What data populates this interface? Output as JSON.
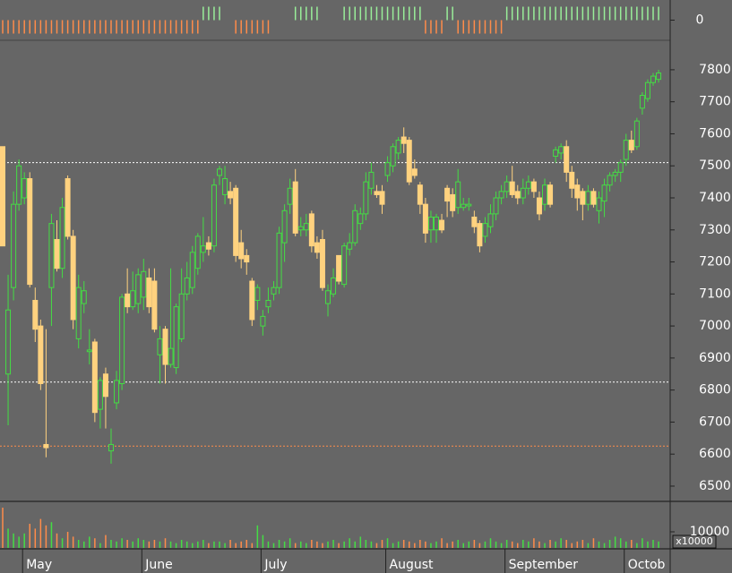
{
  "chart_data": {
    "type": "candlestick",
    "categories": [
      null,
      null,
      null,
      null,
      "May",
      null,
      null,
      null,
      null,
      null,
      null,
      null,
      null,
      null,
      null,
      null,
      null,
      null,
      null,
      null,
      null,
      null,
      null,
      null,
      null,
      null,
      "June",
      null,
      null,
      null,
      null,
      null,
      null,
      null,
      null,
      null,
      null,
      null,
      null,
      null,
      null,
      null,
      null,
      null,
      null,
      null,
      null,
      null,
      "July",
      null,
      null,
      null,
      null,
      null,
      null,
      null,
      null,
      null,
      null,
      null,
      null,
      null,
      null,
      null,
      null,
      null,
      null,
      null,
      null,
      null,
      null,
      "August",
      null,
      null,
      null,
      null,
      null,
      null,
      null,
      null,
      null,
      null,
      null,
      null,
      null,
      null,
      null,
      null,
      null,
      null,
      null,
      null,
      null,
      "September",
      null,
      null,
      null,
      null,
      null,
      null,
      null,
      null,
      null,
      null,
      null,
      null,
      null,
      null,
      null,
      null,
      null,
      null,
      null,
      null,
      null,
      "Octob",
      null,
      null,
      null,
      null,
      null,
      null
    ],
    "open": [
      7560,
      6850,
      7120,
      7380,
      7400,
      7460,
      7080,
      7000,
      6630,
      7120,
      7270,
      7180,
      7460,
      7280,
      6960,
      7070,
      6920,
      6950,
      6740,
      6850,
      6610,
      6760,
      6820,
      7100,
      7060,
      7070,
      7090,
      7150,
      7140,
      6910,
      6990,
      6880,
      6870,
      6960,
      7100,
      7120,
      7180,
      7230,
      7260,
      7250,
      7470,
      7410,
      7420,
      7430,
      7260,
      7220,
      7140,
      7080,
      7000,
      7060,
      7100,
      7120,
      7260,
      7380,
      7450,
      7300,
      7300,
      7350,
      7260,
      7270,
      7070,
      7100,
      7220,
      7130,
      7240,
      7260,
      7320,
      7350,
      7430,
      7420,
      7420,
      7470,
      7500,
      7540,
      7590,
      7580,
      7490,
      7440,
      7380,
      7300,
      7300,
      7330,
      7430,
      7410,
      7370,
      7370,
      7375,
      7340,
      7320,
      7280,
      7310,
      7350,
      7400,
      7420,
      7450,
      7420,
      7400,
      7430,
      7450,
      7400,
      7380,
      7440,
      7530,
      7540,
      7560,
      7480,
      7440,
      7420,
      7380,
      7420,
      7360,
      7390,
      7440,
      7470,
      7480,
      7520,
      7580,
      7560,
      7680,
      7710,
      7760,
      7770
    ],
    "high": [
      7560,
      7160,
      7420,
      7520,
      7480,
      7480,
      7120,
      7020,
      6990,
      7350,
      7330,
      7400,
      7470,
      7300,
      7160,
      7140,
      6990,
      6960,
      6840,
      6870,
      6680,
      6860,
      7100,
      7180,
      7170,
      7180,
      7210,
      7180,
      7180,
      7000,
      7000,
      7180,
      7070,
      7180,
      7200,
      7250,
      7290,
      7340,
      7280,
      7460,
      7500,
      7500,
      7450,
      7440,
      7300,
      7240,
      7150,
      7130,
      7050,
      7120,
      7140,
      7310,
      7380,
      7460,
      7490,
      7340,
      7350,
      7360,
      7280,
      7300,
      7130,
      7180,
      7220,
      7260,
      7290,
      7380,
      7370,
      7480,
      7510,
      7440,
      7440,
      7530,
      7570,
      7590,
      7620,
      7590,
      7520,
      7450,
      7400,
      7360,
      7350,
      7350,
      7440,
      7430,
      7490,
      7400,
      7400,
      7360,
      7330,
      7340,
      7380,
      7420,
      7440,
      7470,
      7500,
      7440,
      7460,
      7470,
      7460,
      7420,
      7460,
      7450,
      7560,
      7570,
      7580,
      7500,
      7460,
      7430,
      7440,
      7430,
      7420,
      7460,
      7480,
      7490,
      7520,
      7600,
      7610,
      7650,
      7730,
      7770,
      7790,
      7800
    ],
    "low": [
      7250,
      6690,
      7080,
      7360,
      7380,
      7120,
      6950,
      6800,
      6590,
      7000,
      7170,
      7150,
      7270,
      6990,
      6930,
      7040,
      6880,
      6700,
      6680,
      6680,
      6570,
      6740,
      6800,
      7040,
      7050,
      7040,
      7050,
      7040,
      6980,
      6820,
      6820,
      6870,
      6850,
      6950,
      7080,
      7100,
      7160,
      7200,
      7220,
      7230,
      7440,
      7380,
      7380,
      7200,
      7180,
      7160,
      7000,
      7050,
      6970,
      7040,
      7080,
      7100,
      7200,
      7350,
      7280,
      7280,
      7280,
      7230,
      7210,
      7110,
      7030,
      7090,
      7130,
      7120,
      7220,
      7250,
      7300,
      7330,
      7410,
      7400,
      7350,
      7450,
      7480,
      7520,
      7540,
      7440,
      7460,
      7350,
      7260,
      7260,
      7260,
      7290,
      7340,
      7340,
      7350,
      7360,
      7360,
      7290,
      7230,
      7260,
      7290,
      7330,
      7380,
      7400,
      7400,
      7380,
      7380,
      7410,
      7400,
      7330,
      7360,
      7370,
      7510,
      7520,
      7450,
      7400,
      7360,
      7330,
      7360,
      7370,
      7320,
      7340,
      7420,
      7450,
      7450,
      7500,
      7540,
      7550,
      7660,
      7700,
      7750,
      7760
    ],
    "close": [
      7250,
      7050,
      7380,
      7500,
      7460,
      7130,
      6990,
      6820,
      6620,
      7320,
      7180,
      7370,
      7280,
      7020,
      7120,
      7110,
      6925,
      6730,
      6830,
      6780,
      6630,
      6830,
      7090,
      7060,
      7110,
      7160,
      7170,
      7060,
      6990,
      6960,
      6880,
      6930,
      7060,
      7100,
      7150,
      7230,
      7280,
      7250,
      7240,
      7440,
      7490,
      7460,
      7400,
      7220,
      7210,
      7200,
      7020,
      7120,
      7030,
      7080,
      7120,
      7290,
      7360,
      7430,
      7290,
      7310,
      7320,
      7250,
      7230,
      7120,
      7110,
      7150,
      7140,
      7250,
      7260,
      7360,
      7350,
      7450,
      7480,
      7410,
      7380,
      7510,
      7560,
      7580,
      7570,
      7450,
      7470,
      7380,
      7290,
      7340,
      7340,
      7300,
      7390,
      7360,
      7450,
      7380,
      7380,
      7310,
      7250,
      7320,
      7350,
      7400,
      7420,
      7450,
      7410,
      7400,
      7430,
      7450,
      7420,
      7350,
      7440,
      7380,
      7550,
      7560,
      7480,
      7430,
      7400,
      7380,
      7420,
      7380,
      7400,
      7440,
      7470,
      7480,
      7510,
      7580,
      7550,
      7640,
      7720,
      7760,
      7780,
      7790
    ],
    "volume": [
      25000,
      12000,
      9000,
      7000,
      9000,
      15000,
      12000,
      18000,
      14000,
      16000,
      9000,
      6000,
      10000,
      7000,
      5000,
      4000,
      7000,
      6000,
      3000,
      8000,
      5000,
      4000,
      6000,
      5000,
      4000,
      6000,
      5000,
      4000,
      5000,
      4000,
      6000,
      4000,
      3000,
      5000,
      4000,
      3000,
      4000,
      5000,
      3000,
      4000,
      4000,
      3000,
      5000,
      3000,
      4000,
      5000,
      3000,
      14000,
      8000,
      4000,
      3000,
      5000,
      4000,
      6000,
      3000,
      4000,
      3000,
      5000,
      4000,
      3000,
      4000,
      5000,
      3000,
      4000,
      6000,
      4000,
      7000,
      5000,
      4000,
      3000,
      5000,
      6000,
      3000,
      4000,
      5000,
      4000,
      3000,
      5000,
      4000,
      3000,
      4000,
      6000,
      3000,
      4000,
      5000,
      3000,
      4000,
      5000,
      3000,
      4000,
      6000,
      4000,
      3000,
      5000,
      4000,
      3000,
      5000,
      4000,
      6000,
      4000,
      3000,
      5000,
      4000,
      6000,
      5000,
      3000,
      4000,
      5000,
      3000,
      6000,
      4000,
      3000,
      5000,
      7000,
      6000,
      4000,
      5000,
      3000,
      6000,
      4000,
      5000,
      4000
    ],
    "indicator": [
      -1,
      -1,
      -1,
      -1,
      -1,
      -1,
      -1,
      -1,
      -1,
      -1,
      -1,
      -1,
      -1,
      -1,
      -1,
      -1,
      -1,
      -1,
      -1,
      -1,
      -1,
      -1,
      -1,
      -1,
      -1,
      -1,
      -1,
      -1,
      -1,
      -1,
      -1,
      -1,
      -1,
      -1,
      -1,
      -1,
      -1,
      1,
      1,
      1,
      1,
      0,
      0,
      -1,
      -1,
      -1,
      -1,
      -1,
      -1,
      -1,
      0,
      0,
      0,
      0,
      1,
      1,
      1,
      1,
      1,
      0,
      0,
      0,
      0,
      1,
      1,
      1,
      1,
      1,
      1,
      1,
      1,
      1,
      1,
      1,
      1,
      1,
      1,
      1,
      -1,
      -1,
      -1,
      -1,
      1,
      1,
      -1,
      -1,
      -1,
      -1,
      -1,
      -1,
      -1,
      -1,
      -1,
      1,
      1,
      1,
      1,
      1,
      1,
      1,
      1,
      1,
      1,
      1,
      1,
      1,
      1,
      1,
      1,
      1,
      1,
      1,
      1,
      1,
      1,
      1,
      1,
      1,
      1,
      1,
      1,
      1
    ],
    "ylim": [
      6458,
      7892
    ],
    "yticks": [
      6500,
      6600,
      6700,
      6800,
      6900,
      7000,
      7100,
      7200,
      7300,
      7400,
      7500,
      7600,
      7700,
      7800
    ],
    "volume_ylim": [
      0,
      27800
    ],
    "volume_yticks": [
      10000
    ],
    "volume_unit": "x10000",
    "indicator_ylim": [
      -1.5,
      1.5
    ],
    "indicator_yticks": [
      0
    ],
    "reference_lines": [
      {
        "value": 7510,
        "color": "#ffffff"
      },
      {
        "value": 6825,
        "color": "#ffffff"
      },
      {
        "value": 6625,
        "color": "#ff8c4a"
      }
    ],
    "up_color": "#44dd44",
    "down_color": "#ffd27f",
    "indicator_up_color": "#99ee99",
    "indicator_down_color": "#ff8c4a"
  }
}
